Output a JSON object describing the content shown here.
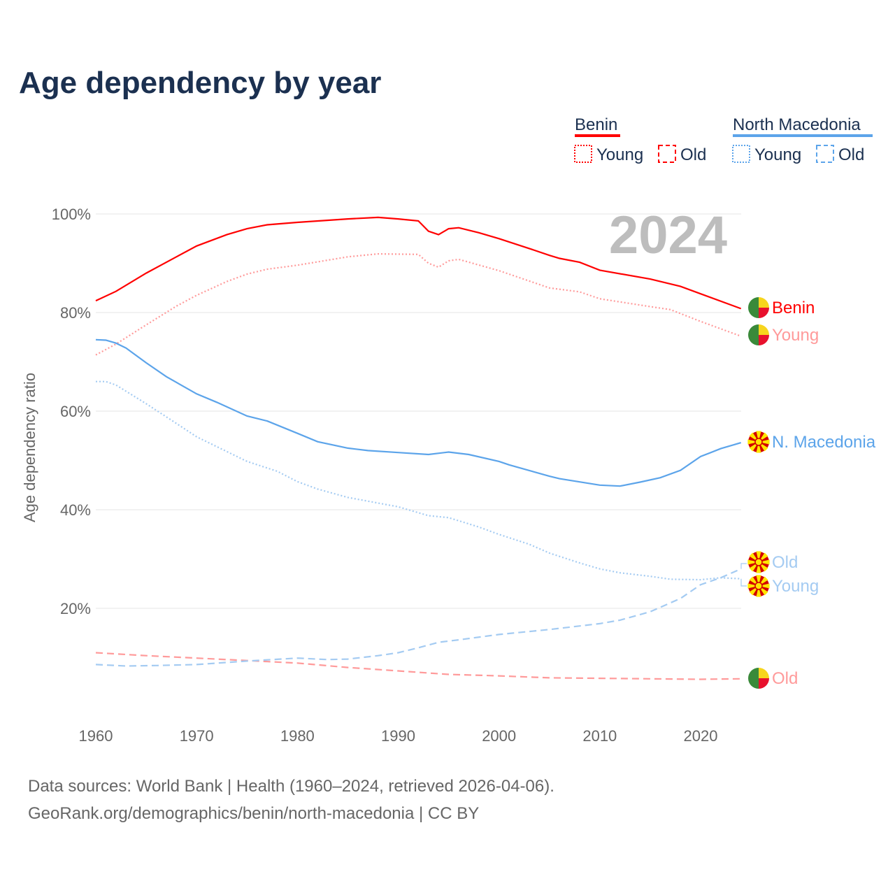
{
  "chart_data": {
    "type": "line",
    "title": "Age dependency by year",
    "ylabel": "Age dependency ratio",
    "xlabel": "",
    "year_badge": "2024",
    "xlim": [
      1960,
      2024
    ],
    "ylim": [
      0,
      100
    ],
    "xticks": [
      "1960",
      "1970",
      "1980",
      "1990",
      "2000",
      "2010",
      "2020"
    ],
    "yticks": [
      "20%",
      "40%",
      "60%",
      "80%",
      "100%"
    ],
    "ytick_values": [
      20,
      40,
      60,
      80,
      100
    ],
    "grid": true,
    "legend": {
      "position": "top-right",
      "groups": [
        {
          "name": "Benin",
          "color": "#ff0000",
          "items": [
            "Young",
            "Old"
          ]
        },
        {
          "name": "North Macedonia",
          "color": "#5ca4ea",
          "items": [
            "Young",
            "Old"
          ]
        }
      ]
    },
    "series": [
      {
        "name": "Benin",
        "label": "Benin",
        "style": "solid",
        "color": "#ff0000",
        "points": [
          [
            1960,
            82.4
          ],
          [
            1962,
            84.3
          ],
          [
            1965,
            88
          ],
          [
            1968,
            91.3
          ],
          [
            1970,
            93.5
          ],
          [
            1973,
            95.8
          ],
          [
            1975,
            97
          ],
          [
            1977,
            97.8
          ],
          [
            1980,
            98.3
          ],
          [
            1985,
            99
          ],
          [
            1988,
            99.3
          ],
          [
            1990,
            99
          ],
          [
            1992,
            98.6
          ],
          [
            1993,
            96.5
          ],
          [
            1994,
            95.8
          ],
          [
            1995,
            97
          ],
          [
            1996,
            97.2
          ],
          [
            1998,
            96.2
          ],
          [
            2000,
            95
          ],
          [
            2003,
            93
          ],
          [
            2005,
            91.6
          ],
          [
            2006,
            91
          ],
          [
            2008,
            90.2
          ],
          [
            2010,
            88.6
          ],
          [
            2015,
            86.8
          ],
          [
            2018,
            85.3
          ],
          [
            2020,
            83.8
          ],
          [
            2024,
            80.8
          ]
        ]
      },
      {
        "name": "Benin Young",
        "label": "Young",
        "style": "dotted",
        "color": "#ff9a9a",
        "points": [
          [
            1960,
            71.4
          ],
          [
            1962,
            73.6
          ],
          [
            1965,
            77.5
          ],
          [
            1968,
            81.3
          ],
          [
            1970,
            83.5
          ],
          [
            1973,
            86.3
          ],
          [
            1975,
            87.8
          ],
          [
            1977,
            88.8
          ],
          [
            1980,
            89.6
          ],
          [
            1985,
            91.3
          ],
          [
            1988,
            91.9
          ],
          [
            1992,
            91.8
          ],
          [
            1993,
            90
          ],
          [
            1994,
            89.2
          ],
          [
            1995,
            90.5
          ],
          [
            1996,
            90.8
          ],
          [
            2000,
            88.5
          ],
          [
            2005,
            85
          ],
          [
            2008,
            84.2
          ],
          [
            2010,
            82.8
          ],
          [
            2015,
            81.2
          ],
          [
            2017,
            80.6
          ],
          [
            2020,
            78.2
          ],
          [
            2024,
            75.2
          ]
        ]
      },
      {
        "name": "Benin Old",
        "label": "Old",
        "style": "dashed",
        "color": "#ff9a9a",
        "points": [
          [
            1960,
            11
          ],
          [
            1965,
            10.4
          ],
          [
            1970,
            9.9
          ],
          [
            1975,
            9.4
          ],
          [
            1980,
            8.9
          ],
          [
            1985,
            8
          ],
          [
            1990,
            7.3
          ],
          [
            1995,
            6.6
          ],
          [
            2000,
            6.3
          ],
          [
            2005,
            5.9
          ],
          [
            2010,
            5.8
          ],
          [
            2015,
            5.7
          ],
          [
            2020,
            5.6
          ],
          [
            2024,
            5.7
          ]
        ]
      },
      {
        "name": "North Macedonia",
        "label": "N. Macedonia",
        "style": "solid",
        "color": "#5ca4ea",
        "points": [
          [
            1960,
            74.5
          ],
          [
            1961,
            74.4
          ],
          [
            1962,
            73.8
          ],
          [
            1963,
            72.8
          ],
          [
            1965,
            69.8
          ],
          [
            1967,
            67
          ],
          [
            1970,
            63.5
          ],
          [
            1972,
            61.8
          ],
          [
            1975,
            59
          ],
          [
            1977,
            58
          ],
          [
            1980,
            55.5
          ],
          [
            1982,
            53.8
          ],
          [
            1985,
            52.5
          ],
          [
            1987,
            52
          ],
          [
            1990,
            51.6
          ],
          [
            1993,
            51.2
          ],
          [
            1995,
            51.7
          ],
          [
            1997,
            51.2
          ],
          [
            2000,
            49.8
          ],
          [
            2001,
            49.1
          ],
          [
            2005,
            46.8
          ],
          [
            2006,
            46.3
          ],
          [
            2010,
            45
          ],
          [
            2012,
            44.8
          ],
          [
            2014,
            45.6
          ],
          [
            2016,
            46.5
          ],
          [
            2018,
            48
          ],
          [
            2020,
            50.8
          ],
          [
            2022,
            52.4
          ],
          [
            2024,
            53.6
          ]
        ]
      },
      {
        "name": "North Macedonia Young",
        "label": "Young",
        "style": "dotted",
        "color": "#a4cbf2",
        "points": [
          [
            1960,
            66
          ],
          [
            1961,
            66
          ],
          [
            1962,
            65.3
          ],
          [
            1965,
            61.5
          ],
          [
            1968,
            57.5
          ],
          [
            1970,
            54.8
          ],
          [
            1975,
            49.8
          ],
          [
            1978,
            47.8
          ],
          [
            1980,
            45.7
          ],
          [
            1982,
            44.2
          ],
          [
            1985,
            42.5
          ],
          [
            1990,
            40.6
          ],
          [
            1993,
            38.8
          ],
          [
            1995,
            38.4
          ],
          [
            1998,
            36.5
          ],
          [
            2000,
            35
          ],
          [
            2003,
            33
          ],
          [
            2005,
            31.2
          ],
          [
            2008,
            29.2
          ],
          [
            2010,
            28
          ],
          [
            2012,
            27.2
          ],
          [
            2015,
            26.5
          ],
          [
            2017,
            25.9
          ],
          [
            2020,
            25.8
          ],
          [
            2022,
            26.2
          ],
          [
            2024,
            26
          ]
        ]
      },
      {
        "name": "North Macedonia Old",
        "label": "Old",
        "style": "dashed",
        "color": "#a4cbf2",
        "points": [
          [
            1960,
            8.6
          ],
          [
            1963,
            8.3
          ],
          [
            1966,
            8.4
          ],
          [
            1970,
            8.6
          ],
          [
            1975,
            9.3
          ],
          [
            1980,
            9.9
          ],
          [
            1983,
            9.6
          ],
          [
            1985,
            9.7
          ],
          [
            1988,
            10.4
          ],
          [
            1990,
            11
          ],
          [
            1992,
            12
          ],
          [
            1994,
            13.1
          ],
          [
            1996,
            13.6
          ],
          [
            2000,
            14.7
          ],
          [
            2005,
            15.7
          ],
          [
            2010,
            16.9
          ],
          [
            2012,
            17.6
          ],
          [
            2015,
            19.3
          ],
          [
            2018,
            22
          ],
          [
            2020,
            24.8
          ],
          [
            2022,
            26.2
          ],
          [
            2024,
            28
          ]
        ]
      }
    ]
  },
  "footer": {
    "line1": "Data sources: World Bank | Health (1960–2024, retrieved 2026-04-06).",
    "line2": "GeoRank.org/demographics/benin/north-macedonia | CC BY"
  }
}
